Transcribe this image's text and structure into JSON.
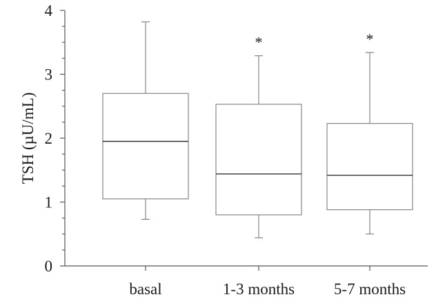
{
  "chart_data": {
    "type": "box",
    "ylabel": "TSH (µU/mL)",
    "xlabel": "",
    "ylim": [
      0,
      4
    ],
    "yticks": [
      0,
      1,
      2,
      3,
      4
    ],
    "ytick_labels": [
      "0",
      "1",
      "2",
      "3",
      "4"
    ],
    "grid": false,
    "categories": [
      "basal",
      "1-3 months",
      "5-7 months"
    ],
    "boxes": [
      {
        "category": "basal",
        "whisker_low": 0.73,
        "q1": 1.05,
        "median": 1.95,
        "q3": 2.7,
        "whisker_high": 3.82,
        "annotation": ""
      },
      {
        "category": "1-3 months",
        "whisker_low": 0.44,
        "q1": 0.8,
        "median": 1.44,
        "q3": 2.53,
        "whisker_high": 3.29,
        "annotation": "*"
      },
      {
        "category": "5-7 months",
        "whisker_low": 0.5,
        "q1": 0.88,
        "median": 1.42,
        "q3": 2.23,
        "whisker_high": 3.34,
        "annotation": "*"
      }
    ]
  }
}
